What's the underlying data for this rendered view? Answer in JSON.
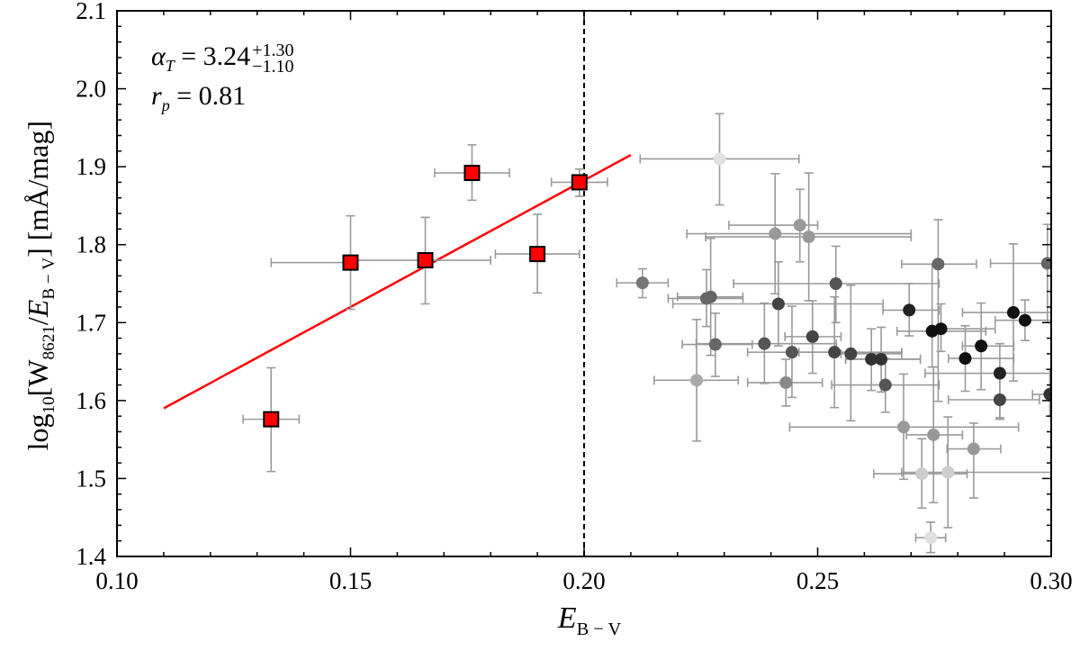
{
  "chart_data": {
    "type": "scatter",
    "title": "",
    "xlabel": {
      "symbol": "E",
      "subscript": "B − V"
    },
    "ylabel": {
      "prefix": "log",
      "log_base": "10",
      "open": "[W",
      "w_sub": "8621",
      "slash": "/",
      "e_symbol": "E",
      "e_sub": "B − V",
      "close": "]",
      "unit": " [mÅ/mag]"
    },
    "xlim": [
      0.1,
      0.3
    ],
    "ylim": [
      1.4,
      2.1
    ],
    "x_ticks": [
      "0.10",
      "0.15",
      "0.20",
      "0.25",
      "0.30"
    ],
    "y_ticks": [
      "1.4",
      "1.5",
      "1.6",
      "1.7",
      "1.8",
      "1.9",
      "2.0",
      "2.1"
    ],
    "grid": false,
    "vertical_line": {
      "x": 0.2,
      "style": "dashed",
      "color": "#000000"
    },
    "fit_line": {
      "x": [
        0.11,
        0.21
      ],
      "y": [
        1.59,
        1.915
      ],
      "color": "#ff0000"
    },
    "annotations": {
      "alpha": {
        "symbol": "α",
        "sub": "T",
        "eq": " = 3.24",
        "upper": "+1.30",
        "lower": "−1.10"
      },
      "rp": {
        "symbol": "r",
        "sub": "p",
        "eq": " = 0.81"
      }
    },
    "series": [
      {
        "marker": "square",
        "color": "#ff0000",
        "points": [
          {
            "x": 0.133,
            "y": 1.576,
            "xerr": [
              0.127,
              0.139
            ],
            "yerr": [
              1.509,
              1.642
            ]
          },
          {
            "x": 0.15,
            "y": 1.777,
            "xerr": [
              0.133,
              0.151
            ],
            "yerr": [
              1.717,
              1.837
            ]
          },
          {
            "x": 0.166,
            "y": 1.78,
            "xerr": [
              0.151,
              0.18
            ],
            "yerr": [
              1.724,
              1.835
            ]
          },
          {
            "x": 0.176,
            "y": 1.892,
            "xerr": [
              0.168,
              0.184
            ],
            "yerr": [
              1.857,
              1.928
            ]
          },
          {
            "x": 0.19,
            "y": 1.788,
            "xerr": [
              0.181,
              0.199
            ],
            "yerr": [
              1.738,
              1.839
            ]
          },
          {
            "x": 0.199,
            "y": 1.88,
            "xerr": [
              0.193,
              0.205
            ],
            "yerr": [
              1.862,
              1.897
            ]
          }
        ]
      },
      {
        "marker": "circle",
        "color": "grayscale",
        "points": [
          {
            "x": 0.229,
            "y": 1.91,
            "xerr": [
              0.212,
              0.246
            ],
            "yerr": [
              1.851,
              1.968
            ],
            "color": "#e0e0e0"
          },
          {
            "x": 0.2125,
            "y": 1.751,
            "xerr": [
              0.207,
              0.218
            ],
            "yerr": [
              1.732,
              1.769
            ],
            "color": "#777777"
          },
          {
            "x": 0.2262,
            "y": 1.731,
            "xerr": [
              0.218,
              0.234
            ],
            "yerr": [
              1.695,
              1.768
            ],
            "color": "#666666"
          },
          {
            "x": 0.2271,
            "y": 1.733,
            "xerr": [
              0.22,
              0.234
            ],
            "yerr": [
              1.658,
              1.808
            ],
            "color": "#666666"
          },
          {
            "x": 0.2281,
            "y": 1.672,
            "xerr": [
              0.221,
              0.236
            ],
            "yerr": [
              1.631,
              1.712
            ],
            "color": "#666666"
          },
          {
            "x": 0.2241,
            "y": 1.626,
            "xerr": [
              0.215,
              0.233
            ],
            "yerr": [
              1.548,
              1.704
            ],
            "color": "#aaaaaa"
          },
          {
            "x": 0.2409,
            "y": 1.814,
            "xerr": [
              0.222,
              0.27
            ],
            "yerr": [
              1.737,
              1.891
            ],
            "color": "#999999"
          },
          {
            "x": 0.2462,
            "y": 1.825,
            "xerr": [
              0.231,
              0.25
            ],
            "yerr": [
              1.778,
              1.871
            ],
            "color": "#999999"
          },
          {
            "x": 0.2481,
            "y": 1.81,
            "xerr": [
              0.226,
              0.27
            ],
            "yerr": [
              1.728,
              1.892
            ],
            "color": "#999999"
          },
          {
            "x": 0.2416,
            "y": 1.724,
            "xerr": [
              0.219,
              0.264
            ],
            "yerr": [
              1.67,
              1.778
            ],
            "color": "#444444"
          },
          {
            "x": 0.2386,
            "y": 1.673,
            "xerr": [
              0.224,
              0.254
            ],
            "yerr": [
              1.622,
              1.725
            ],
            "color": "#555555"
          },
          {
            "x": 0.2432,
            "y": 1.623,
            "xerr": [
              0.235,
              0.251
            ],
            "yerr": [
              1.593,
              1.653
            ],
            "color": "#888888"
          },
          {
            "x": 0.2445,
            "y": 1.662,
            "xerr": [
              0.235,
              0.254
            ],
            "yerr": [
              1.604,
              1.721
            ],
            "color": "#555555"
          },
          {
            "x": 0.2489,
            "y": 1.682,
            "xerr": [
              0.243,
              0.255
            ],
            "yerr": [
              1.635,
              1.728
            ],
            "color": "#444444"
          },
          {
            "x": 0.2539,
            "y": 1.75,
            "xerr": [
              0.232,
              0.276
            ],
            "yerr": [
              1.7,
              1.798
            ],
            "color": "#555555"
          },
          {
            "x": 0.2536,
            "y": 1.662,
            "xerr": [
              0.246,
              0.268
            ],
            "yerr": [
              1.591,
              1.733
            ],
            "color": "#444444"
          },
          {
            "x": 0.2571,
            "y": 1.66,
            "xerr": [
              0.255,
              0.268
            ],
            "yerr": [
              1.574,
              1.748
            ],
            "color": "#444444"
          },
          {
            "x": 0.2615,
            "y": 1.653,
            "xerr": [
              0.256,
              0.272
            ],
            "yerr": [
              1.613,
              1.692
            ],
            "color": "#333333"
          },
          {
            "x": 0.2636,
            "y": 1.653,
            "xerr": [
              0.256,
              0.272
            ],
            "yerr": [
              1.611,
              1.694
            ],
            "color": "#333333"
          },
          {
            "x": 0.2645,
            "y": 1.62,
            "xerr": [
              0.253,
              0.276
            ],
            "yerr": [
              1.585,
              1.654
            ],
            "color": "#555555"
          },
          {
            "x": 0.2684,
            "y": 1.566,
            "xerr": [
              0.244,
              0.293
            ],
            "yerr": [
              1.499,
              1.634
            ],
            "color": "#999999"
          },
          {
            "x": 0.2696,
            "y": 1.716,
            "xerr": [
              0.264,
              0.276
            ],
            "yerr": [
              1.683,
              1.75
            ],
            "color": "#222222"
          },
          {
            "x": 0.2758,
            "y": 1.775,
            "xerr": [
              0.268,
              0.284
            ],
            "yerr": [
              1.599,
              1.832
            ],
            "color": "#666666"
          },
          {
            "x": 0.2745,
            "y": 1.689,
            "xerr": [
              0.267,
              0.286
            ],
            "yerr": [
              1.643,
              1.775
            ],
            "color": "#111111"
          },
          {
            "x": 0.2764,
            "y": 1.692,
            "xerr": [
              0.2757,
              0.288
            ],
            "yerr": [
              1.663,
              1.724
            ],
            "color": "#111111"
          },
          {
            "x": 0.2748,
            "y": 1.556,
            "xerr": [
              0.269,
              0.281
            ],
            "yerr": [
              1.469,
              1.643
            ],
            "color": "#999999"
          },
          {
            "x": 0.2723,
            "y": 1.506,
            "xerr": [
              0.262,
              0.282
            ],
            "yerr": [
              1.462,
              1.551
            ],
            "color": "#cccccc"
          },
          {
            "x": 0.2779,
            "y": 1.508,
            "xerr": [
              0.268,
              0.3
            ],
            "yerr": [
              1.437,
              1.579
            ],
            "color": "#cccccc"
          },
          {
            "x": 0.2742,
            "y": 1.424,
            "xerr": [
              0.271,
              0.2774
            ],
            "yerr": [
              1.405,
              1.444
            ],
            "color": "#e0e0e0"
          },
          {
            "x": 0.2834,
            "y": 1.538,
            "xerr": [
              0.2777,
              0.2892
            ],
            "yerr": [
              1.475,
              1.571
            ],
            "color": "#999999"
          },
          {
            "x": 0.2816,
            "y": 1.654,
            "xerr": [
              0.278,
              0.292
            ],
            "yerr": [
              1.612,
              1.696
            ],
            "color": "#111111"
          },
          {
            "x": 0.285,
            "y": 1.67,
            "xerr": [
              0.281,
              0.292
            ],
            "yerr": [
              1.614,
              1.725
            ],
            "color": "#111111"
          },
          {
            "x": 0.289,
            "y": 1.635,
            "xerr": [
              0.273,
              0.3
            ],
            "yerr": [
              1.578,
              1.673
            ],
            "color": "#222222"
          },
          {
            "x": 0.289,
            "y": 1.601,
            "xerr": [
              0.278,
              0.2975
            ],
            "yerr": [
              1.576,
              1.633
            ],
            "color": "#444444"
          },
          {
            "x": 0.2919,
            "y": 1.713,
            "xerr": [
              0.281,
              0.3
            ],
            "yerr": [
              1.625,
              1.801
            ],
            "color": "#111111"
          },
          {
            "x": 0.2944,
            "y": 1.703,
            "xerr": [
              0.288,
              0.3
            ],
            "yerr": [
              1.677,
              1.729
            ],
            "color": "#111111"
          },
          {
            "x": 0.2992,
            "y": 1.776,
            "xerr": [
              0.287,
              0.3
            ],
            "yerr": [
              1.7,
              1.826
            ],
            "color": "#666666"
          },
          {
            "x": 0.2997,
            "y": 1.608,
            "xerr": [
              0.296,
              0.3
            ],
            "yerr": [
              1.58,
              1.64
            ],
            "color": "#333333"
          }
        ]
      }
    ]
  }
}
